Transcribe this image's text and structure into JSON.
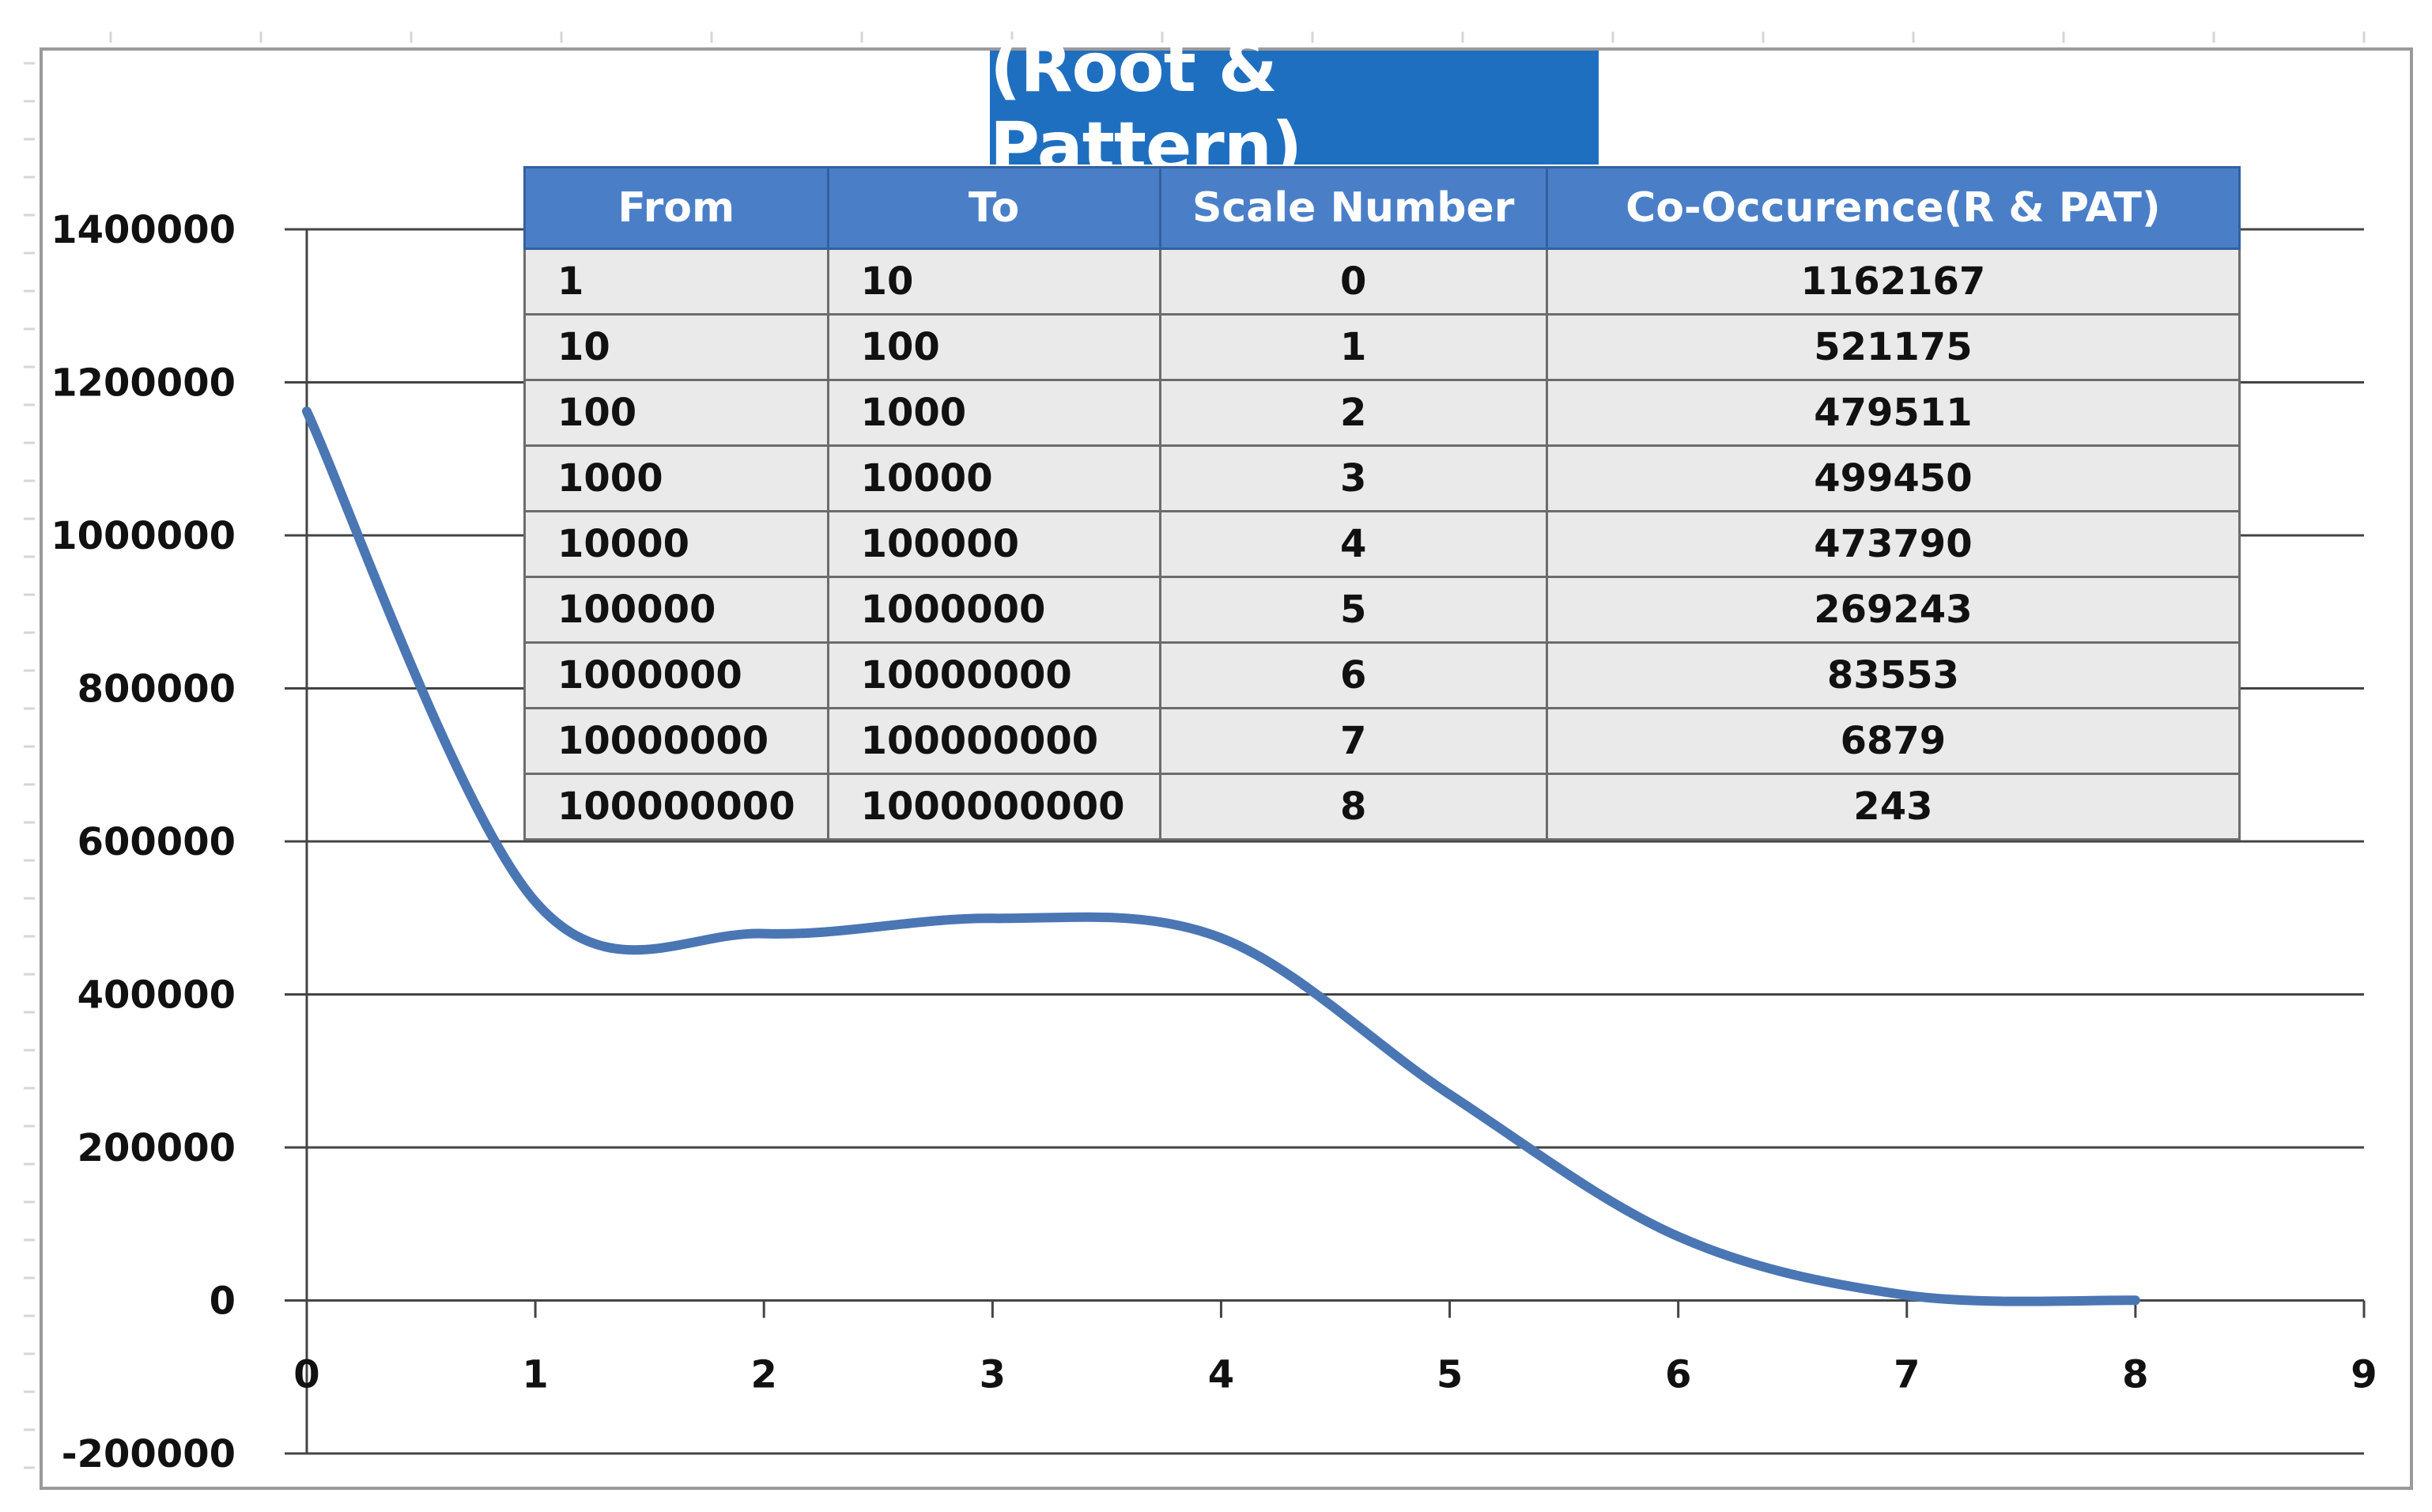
{
  "chart_data": {
    "type": "line",
    "title": "(Root & Pattern)",
    "xlabel": "",
    "ylabel": "",
    "xlim": [
      0,
      9
    ],
    "ylim": [
      -200000,
      1400000
    ],
    "x_ticks": [
      "0",
      "1",
      "2",
      "3",
      "4",
      "5",
      "6",
      "7",
      "8",
      "9"
    ],
    "y_ticks": [
      "1400000",
      "1200000",
      "1000000",
      "800000",
      "600000",
      "400000",
      "200000",
      "0",
      "-200000"
    ],
    "grid": "horizontal",
    "smooth": true,
    "line_color": "#4a76b4",
    "series": [
      {
        "x": [
          0,
          1,
          2,
          3,
          4,
          5,
          6,
          7,
          8
        ],
        "values": [
          1162167,
          521175,
          479511,
          499450,
          473790,
          269243,
          83553,
          6879,
          243
        ]
      }
    ],
    "table": {
      "columns": [
        "From",
        "To",
        "Scale Number",
        "Co-Occurence(R & PAT)"
      ],
      "rows": [
        [
          "1",
          "10",
          "0",
          "1162167"
        ],
        [
          "10",
          "100",
          "1",
          "521175"
        ],
        [
          "100",
          "1000",
          "2",
          "479511"
        ],
        [
          "1000",
          "10000",
          "3",
          "499450"
        ],
        [
          "10000",
          "100000",
          "4",
          "473790"
        ],
        [
          "100000",
          "1000000",
          "5",
          "269243"
        ],
        [
          "1000000",
          "10000000",
          "6",
          "83553"
        ],
        [
          "10000000",
          "100000000",
          "7",
          "6879"
        ],
        [
          "100000000",
          "1000000000",
          "8",
          "243"
        ]
      ]
    }
  }
}
